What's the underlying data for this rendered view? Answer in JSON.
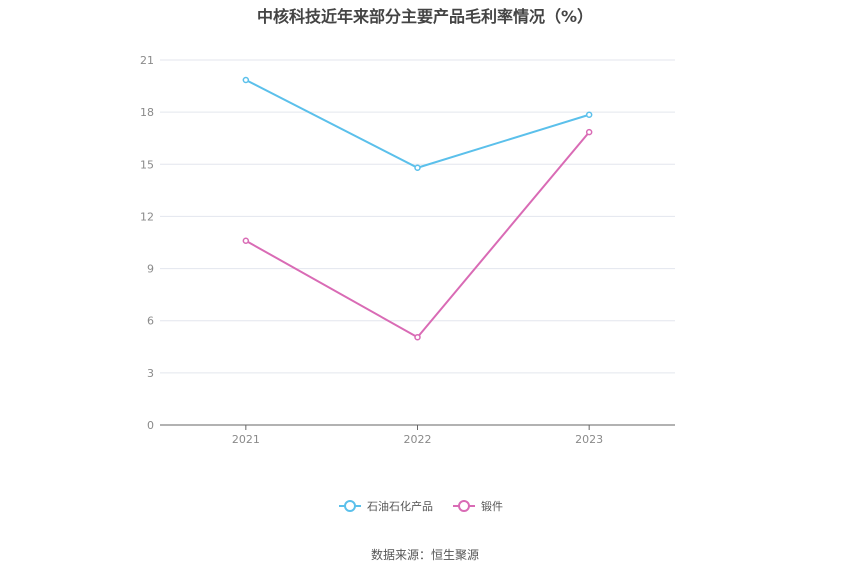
{
  "chart_data": {
    "type": "line",
    "title": "中核科技近年来部分主要产品毛利率情况（%）",
    "categories": [
      "2021",
      "2022",
      "2023"
    ],
    "ylim": [
      0,
      21
    ],
    "yticks": [
      0,
      3,
      6,
      9,
      12,
      15,
      18,
      21
    ],
    "grid": true,
    "legend_position": "bottom",
    "series": [
      {
        "name": "石油石化产品",
        "color": "#5bc0eb",
        "values": [
          19.85,
          14.8,
          17.85
        ]
      },
      {
        "name": "锻件",
        "color": "#d96bb5",
        "values": [
          10.6,
          5.05,
          16.85
        ]
      }
    ]
  },
  "source": "数据来源：恒生聚源"
}
